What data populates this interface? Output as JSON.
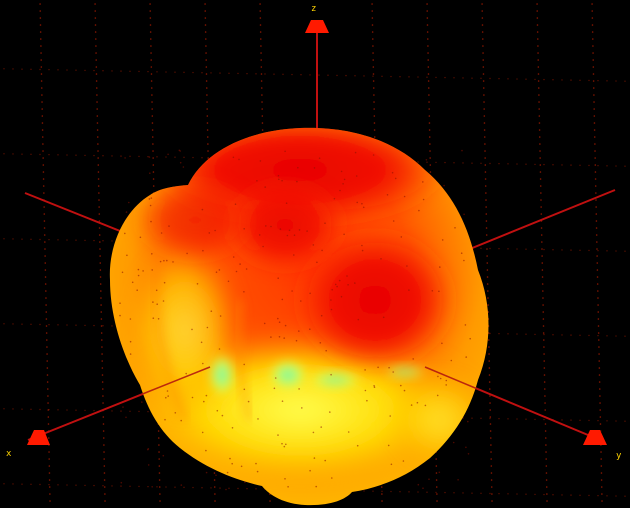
{
  "viewport": {
    "background_color": "#000000",
    "grid_color": "#ff2a00",
    "axis_color": "#c01010",
    "arrow_color": "#ff1a00",
    "label_color": "#ffd400"
  },
  "axes": {
    "z_label": "z",
    "x_label": "x",
    "y_label": "y"
  },
  "blob": {
    "colormap": [
      "#e80000",
      "#ff3000",
      "#ff7a00",
      "#ffd200",
      "#ffff40",
      "#a0ff7a",
      "#6ff0a6"
    ]
  }
}
